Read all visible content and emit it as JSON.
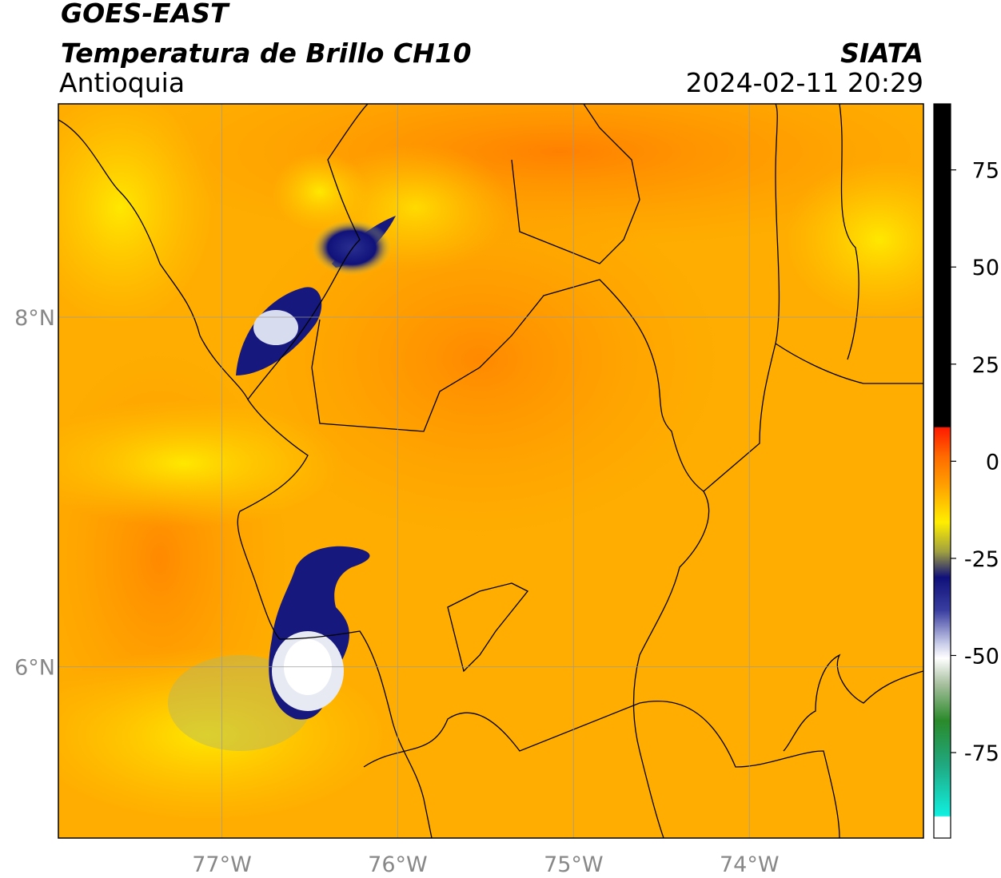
{
  "header": {
    "title": "GOES-EAST",
    "subtitle": "Temperatura de Brillo CH10",
    "region": "Antioquia",
    "source": "SIATA",
    "timestamp": "2024-02-11 20:29"
  },
  "map": {
    "lonlim": [
      -77.93,
      -73.01
    ],
    "latlim": [
      5.02,
      9.22
    ],
    "lon_ticks": [
      {
        "value": -77,
        "label": "77°W"
      },
      {
        "value": -76,
        "label": "76°W"
      },
      {
        "value": -75,
        "label": "75°W"
      },
      {
        "value": -74,
        "label": "74°W"
      }
    ],
    "lat_ticks": [
      {
        "value": 8,
        "label": "8°N"
      },
      {
        "value": 6,
        "label": "6°N"
      }
    ]
  },
  "colorbar": {
    "range": [
      -97,
      92
    ],
    "ticks": [
      75,
      50,
      25,
      0,
      -25,
      -50,
      -75
    ]
  }
}
